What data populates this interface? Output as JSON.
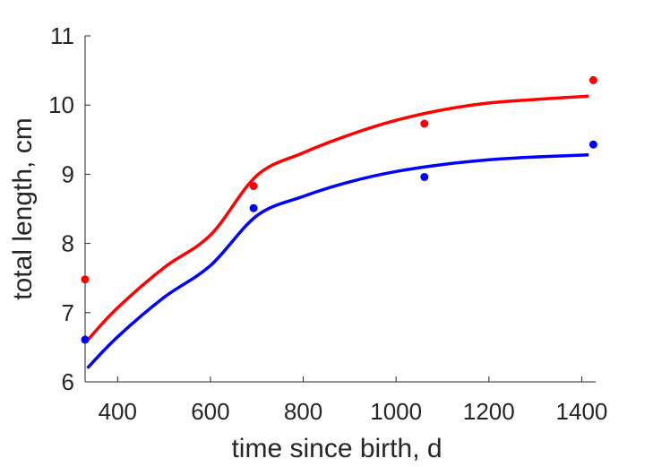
{
  "chart_data": {
    "type": "scatter",
    "xlabel": "time since birth, d",
    "ylabel": "total length, cm",
    "xlim": [
      330,
      1430
    ],
    "ylim": [
      6,
      11
    ],
    "xticks": [
      400,
      600,
      800,
      1000,
      1200,
      1400
    ],
    "yticks": [
      6,
      7,
      8,
      9,
      10,
      11
    ],
    "grid": false,
    "series": [
      {
        "color": "#ff0000",
        "points": [
          {
            "x": 330,
            "y": 7.48
          },
          {
            "x": 693,
            "y": 8.83
          },
          {
            "x": 1061,
            "y": 9.73
          },
          {
            "x": 1425,
            "y": 10.36
          }
        ],
        "fit": [
          {
            "x": 335,
            "y": 6.6
          },
          {
            "x": 400,
            "y": 7.07
          },
          {
            "x": 500,
            "y": 7.65
          },
          {
            "x": 600,
            "y": 8.12
          },
          {
            "x": 700,
            "y": 8.98
          },
          {
            "x": 800,
            "y": 9.31
          },
          {
            "x": 900,
            "y": 9.57
          },
          {
            "x": 1000,
            "y": 9.78
          },
          {
            "x": 1100,
            "y": 9.93
          },
          {
            "x": 1200,
            "y": 10.03
          },
          {
            "x": 1300,
            "y": 10.08
          },
          {
            "x": 1415,
            "y": 10.13
          }
        ]
      },
      {
        "color": "#0000ff",
        "points": [
          {
            "x": 330,
            "y": 6.61
          },
          {
            "x": 693,
            "y": 8.51
          },
          {
            "x": 1061,
            "y": 8.96
          },
          {
            "x": 1425,
            "y": 9.43
          }
        ],
        "fit": [
          {
            "x": 335,
            "y": 6.2
          },
          {
            "x": 400,
            "y": 6.65
          },
          {
            "x": 500,
            "y": 7.22
          },
          {
            "x": 600,
            "y": 7.68
          },
          {
            "x": 700,
            "y": 8.4
          },
          {
            "x": 800,
            "y": 8.68
          },
          {
            "x": 900,
            "y": 8.89
          },
          {
            "x": 1000,
            "y": 9.04
          },
          {
            "x": 1100,
            "y": 9.14
          },
          {
            "x": 1200,
            "y": 9.21
          },
          {
            "x": 1300,
            "y": 9.25
          },
          {
            "x": 1415,
            "y": 9.28
          }
        ]
      }
    ]
  }
}
